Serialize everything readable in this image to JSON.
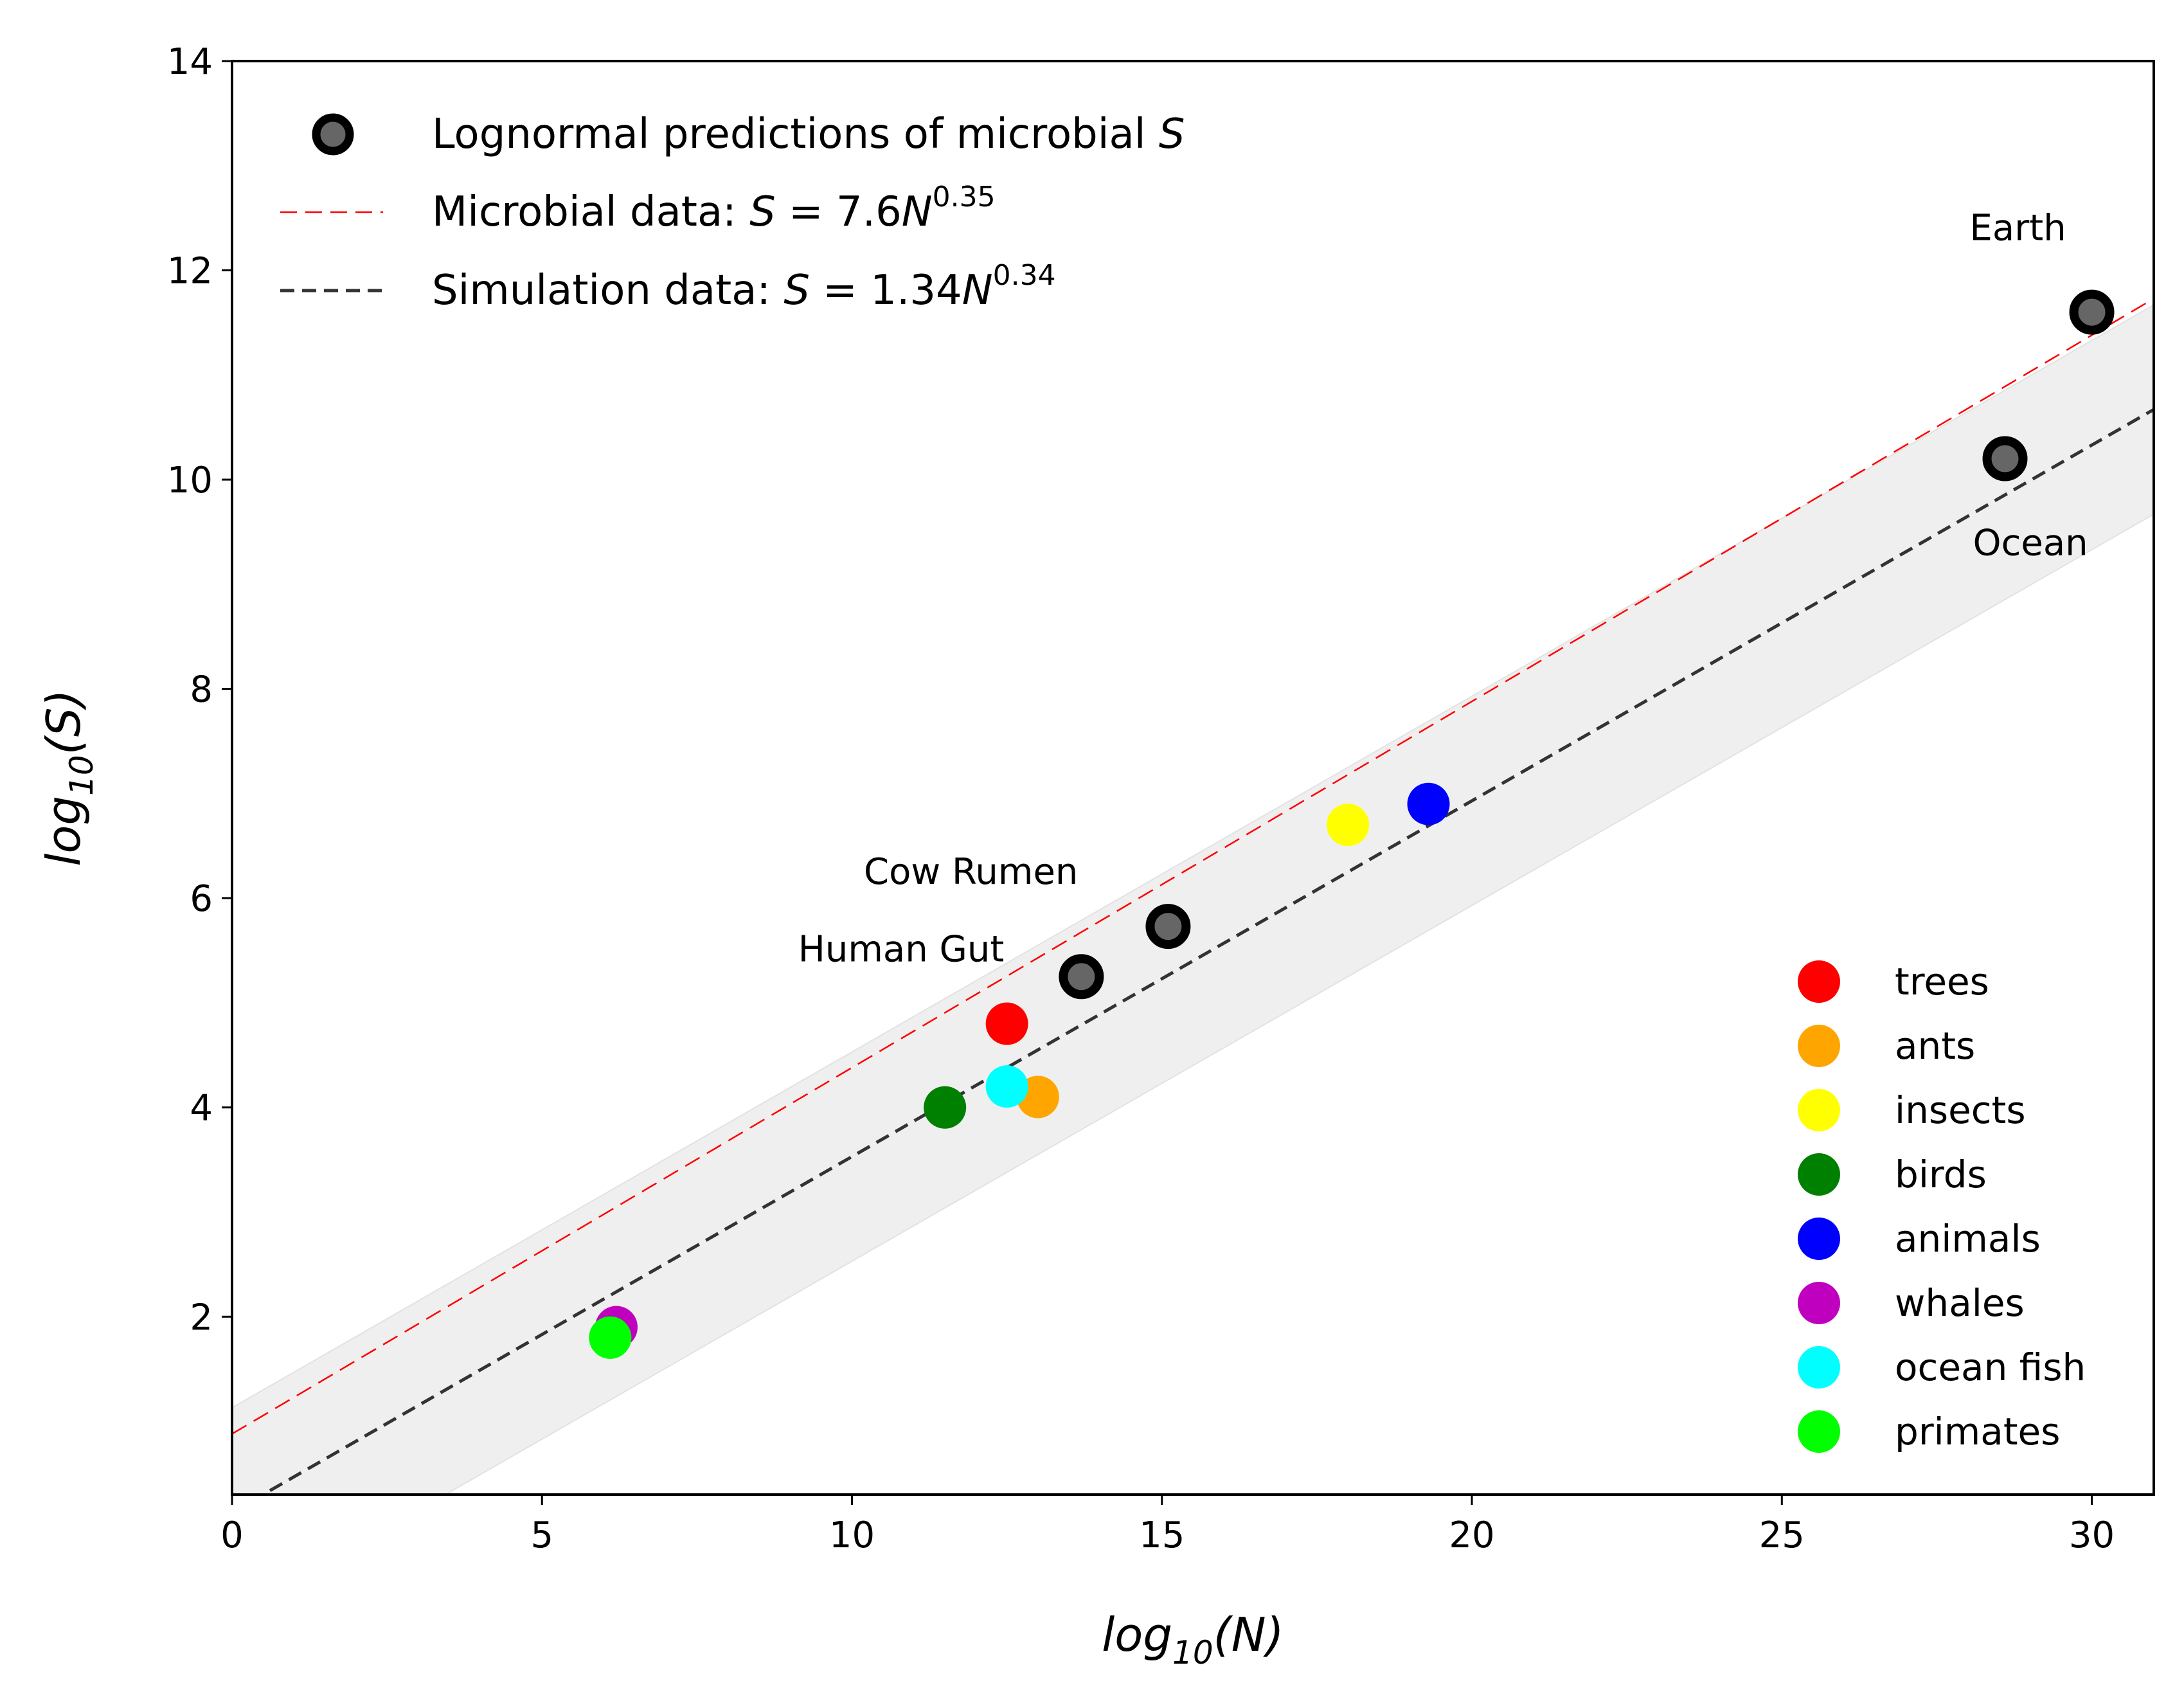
{
  "chart_data": {
    "type": "scatter",
    "xlabel": "log10(N)",
    "ylabel": "log10(S)",
    "xlim": [
      0,
      31
    ],
    "ylim": [
      0.3,
      14
    ],
    "xticks": [
      0,
      5,
      10,
      15,
      20,
      25,
      30
    ],
    "yticks": [
      2,
      4,
      6,
      8,
      10,
      12,
      14
    ],
    "grid": false,
    "legend_main_placement": "top-left",
    "legend_taxa_placement": "bottom-right",
    "band": {
      "color": "#efefef",
      "slope": 0.34,
      "upper_intercept": 1.13,
      "lower_intercept": -0.87
    },
    "lines": [
      {
        "name": "Microbial data: S = 7.6N^0.35",
        "label_prefix": "Microbial data: ",
        "base": "7.6",
        "exp": "0.35",
        "slope": 0.35,
        "intercept": 0.88,
        "color": "#ff0000",
        "style": "thin-dash"
      },
      {
        "name": "Simulation data: S = 1.34N^0.34",
        "label_prefix": "Simulation data: ",
        "base": "1.34",
        "exp": "0.34",
        "slope": 0.34,
        "intercept": 0.13,
        "color": "#333333",
        "style": "dash"
      }
    ],
    "microbial_points": {
      "name": "Lognormal predictions of microbial S",
      "label_prefix": "Lognormal predictions of microbial ",
      "points": [
        {
          "x": 13.7,
          "y": 5.25,
          "label": "Human Gut"
        },
        {
          "x": 15.1,
          "y": 5.73,
          "label": "Cow Rumen"
        },
        {
          "x": 28.6,
          "y": 10.2,
          "label": "Ocean"
        },
        {
          "x": 30.0,
          "y": 11.6,
          "label": "Earth"
        }
      ]
    },
    "taxa": [
      {
        "name": "trees",
        "color": "#ff0000",
        "x": 12.5,
        "y": 4.8
      },
      {
        "name": "ants",
        "color": "#ffa500",
        "x": 13.0,
        "y": 4.1
      },
      {
        "name": "insects",
        "color": "#ffff00",
        "x": 18.0,
        "y": 6.7
      },
      {
        "name": "birds",
        "color": "#008000",
        "x": 11.5,
        "y": 4.0
      },
      {
        "name": "animals",
        "color": "#0000ff",
        "x": 19.3,
        "y": 6.9
      },
      {
        "name": "whales",
        "color": "#bf00bf",
        "x": 6.2,
        "y": 1.9
      },
      {
        "name": "ocean fish",
        "color": "#00ffff",
        "x": 12.5,
        "y": 4.2
      },
      {
        "name": "primates",
        "color": "#00ff00",
        "x": 6.1,
        "y": 1.8
      }
    ]
  }
}
